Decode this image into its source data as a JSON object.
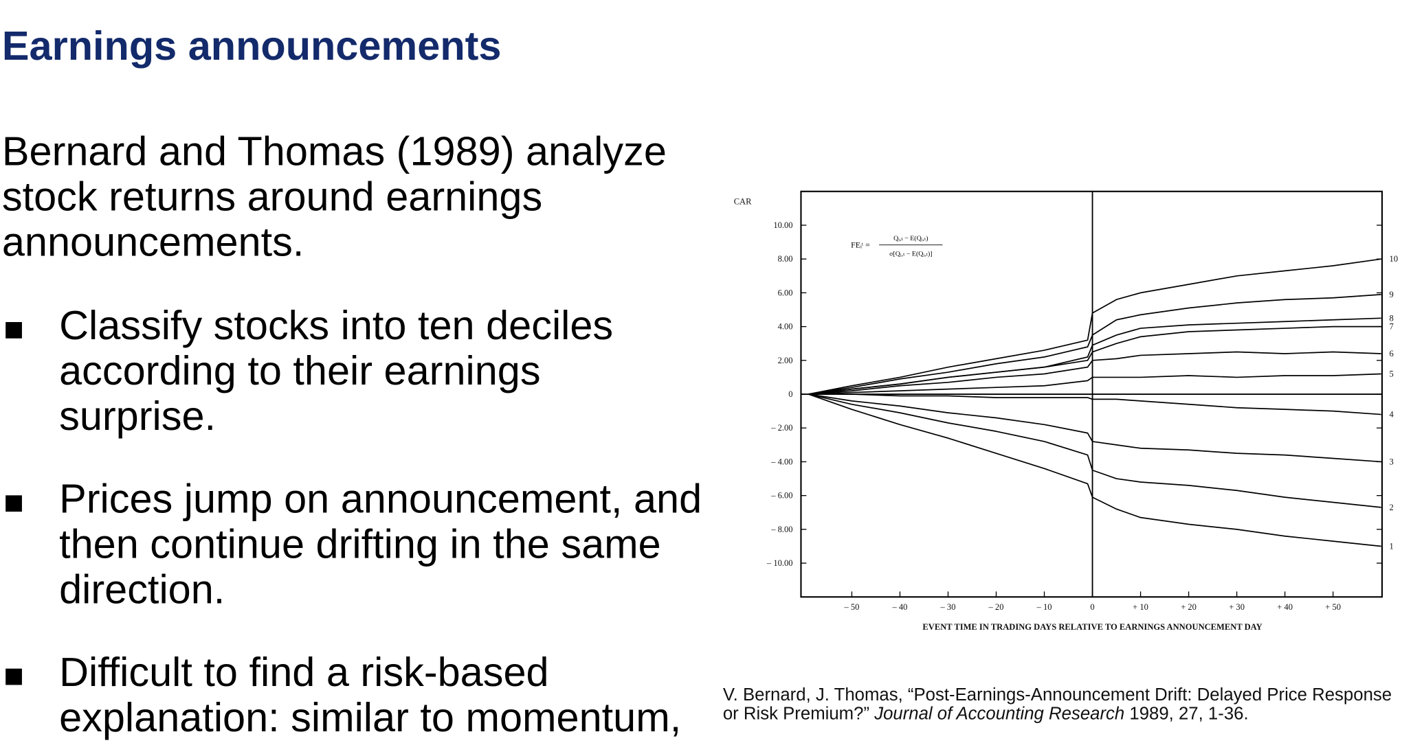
{
  "slide": {
    "title": "Earnings announcements",
    "intro": [
      "Bernard and Thomas (1989) analyze",
      "stock returns around earnings",
      "announcements."
    ],
    "bullets": [
      [
        "Classify stocks into ten deciles",
        "according to their earnings",
        "surprise."
      ],
      [
        "Prices jump on announcement, and",
        "then continue drifting in the same",
        "direction."
      ],
      [
        "Difficult to find a risk-based",
        "explanation: similar to momentum,"
      ]
    ],
    "citation": {
      "line1": "V. Bernard, J. Thomas, “Post-Earnings-Announcement Drift: Delayed Price Response",
      "line2_start": "or Risk Premium?” ",
      "journal": "Journal of Accounting Research",
      "line2_end": " 1989, 27, 1-36."
    }
  },
  "chart_data": {
    "type": "line",
    "y_label": "CAR",
    "x_label": "EVENT TIME IN TRADING DAYS RELATIVE TO EARNINGS ANNOUNCEMENT DAY",
    "annotation": {
      "lhs": "FEᵢᵗ =",
      "numerator": "Qᵢ,ₜ − E(Qᵢ,ₜ)",
      "denominator": "σ[Qᵢ,ₜ − E(Qᵢ,ₜ)]"
    },
    "x": [
      -59,
      -50,
      -40,
      -30,
      -20,
      -10,
      -1,
      0,
      5,
      10,
      20,
      30,
      40,
      50,
      60
    ],
    "xlim": [
      -60,
      60
    ],
    "ylim": [
      -12,
      12
    ],
    "xticks": [
      {
        "value": -50,
        "label": "– 50"
      },
      {
        "value": -40,
        "label": "– 40"
      },
      {
        "value": -30,
        "label": "– 30"
      },
      {
        "value": -20,
        "label": "– 20"
      },
      {
        "value": -10,
        "label": "– 10"
      },
      0,
      {
        "value": 10,
        "label": "+ 10"
      },
      {
        "value": 20,
        "label": "+ 20"
      },
      {
        "value": 30,
        "label": "+ 30"
      },
      {
        "value": 40,
        "label": "+ 40"
      },
      {
        "value": 50,
        "label": "+ 50"
      }
    ],
    "yticks": [
      {
        "value": 10,
        "label": "10.00"
      },
      {
        "value": 8,
        "label": "8.00"
      },
      {
        "value": 6,
        "label": "6.00"
      },
      {
        "value": 4,
        "label": "4.00"
      },
      {
        "value": 2,
        "label": "2.00"
      },
      0,
      {
        "value": -2,
        "label": "– 2.00"
      },
      {
        "value": -4,
        "label": "– 4.00"
      },
      {
        "value": -6,
        "label": "– 6.00"
      },
      {
        "value": -8,
        "label": "– 8.00"
      },
      {
        "value": -10,
        "label": "– 10.00"
      }
    ],
    "series": [
      {
        "name": "10",
        "color": "#000000",
        "values": [
          0,
          0.5,
          1.0,
          1.6,
          2.1,
          2.6,
          3.2,
          4.8,
          5.6,
          6.0,
          6.5,
          7.0,
          7.3,
          7.6,
          8.0
        ]
      },
      {
        "name": "9",
        "color": "#000000",
        "values": [
          0,
          0.4,
          0.9,
          1.3,
          1.8,
          2.2,
          2.8,
          3.5,
          4.4,
          4.7,
          5.1,
          5.4,
          5.6,
          5.7,
          5.9
        ]
      },
      {
        "name": "8",
        "color": "#000000",
        "values": [
          0,
          0.3,
          0.6,
          1.0,
          1.3,
          1.6,
          2.2,
          2.9,
          3.5,
          3.9,
          4.1,
          4.2,
          4.3,
          4.4,
          4.5
        ]
      },
      {
        "name": "7",
        "color": "#000000",
        "values": [
          0,
          0.3,
          0.6,
          1.0,
          1.3,
          1.6,
          2.0,
          2.5,
          3.0,
          3.4,
          3.7,
          3.8,
          3.9,
          4.0,
          4.0
        ]
      },
      {
        "name": "6",
        "color": "#000000",
        "values": [
          0,
          0.2,
          0.5,
          0.7,
          1.0,
          1.2,
          1.6,
          2.0,
          2.1,
          2.3,
          2.4,
          2.5,
          2.4,
          2.5,
          2.4
        ]
      },
      {
        "name": "5",
        "color": "#000000",
        "values": [
          0,
          0.1,
          0.2,
          0.3,
          0.4,
          0.5,
          0.8,
          1.0,
          1.0,
          1.0,
          1.1,
          1.0,
          1.1,
          1.1,
          1.2
        ]
      },
      {
        "name": "4",
        "color": "#000000",
        "values": [
          0,
          0,
          -0.1,
          -0.1,
          -0.2,
          -0.2,
          -0.2,
          -0.3,
          -0.3,
          -0.4,
          -0.6,
          -0.8,
          -0.9,
          -1.0,
          -1.2
        ]
      },
      {
        "name": "3",
        "color": "#000000",
        "values": [
          0,
          -0.4,
          -0.7,
          -1.1,
          -1.4,
          -1.8,
          -2.3,
          -2.8,
          -3.0,
          -3.2,
          -3.3,
          -3.5,
          -3.6,
          -3.8,
          -4.0
        ]
      },
      {
        "name": "2",
        "color": "#000000",
        "values": [
          0,
          -0.6,
          -1.1,
          -1.7,
          -2.2,
          -2.8,
          -3.6,
          -4.5,
          -5.0,
          -5.2,
          -5.4,
          -5.7,
          -6.1,
          -6.4,
          -6.7
        ]
      },
      {
        "name": "1",
        "color": "#000000",
        "values": [
          0,
          -0.9,
          -1.8,
          -2.6,
          -3.5,
          -4.4,
          -5.3,
          -6.1,
          -6.8,
          -7.3,
          -7.7,
          -8.0,
          -8.4,
          -8.7,
          -9.0
        ]
      }
    ]
  }
}
